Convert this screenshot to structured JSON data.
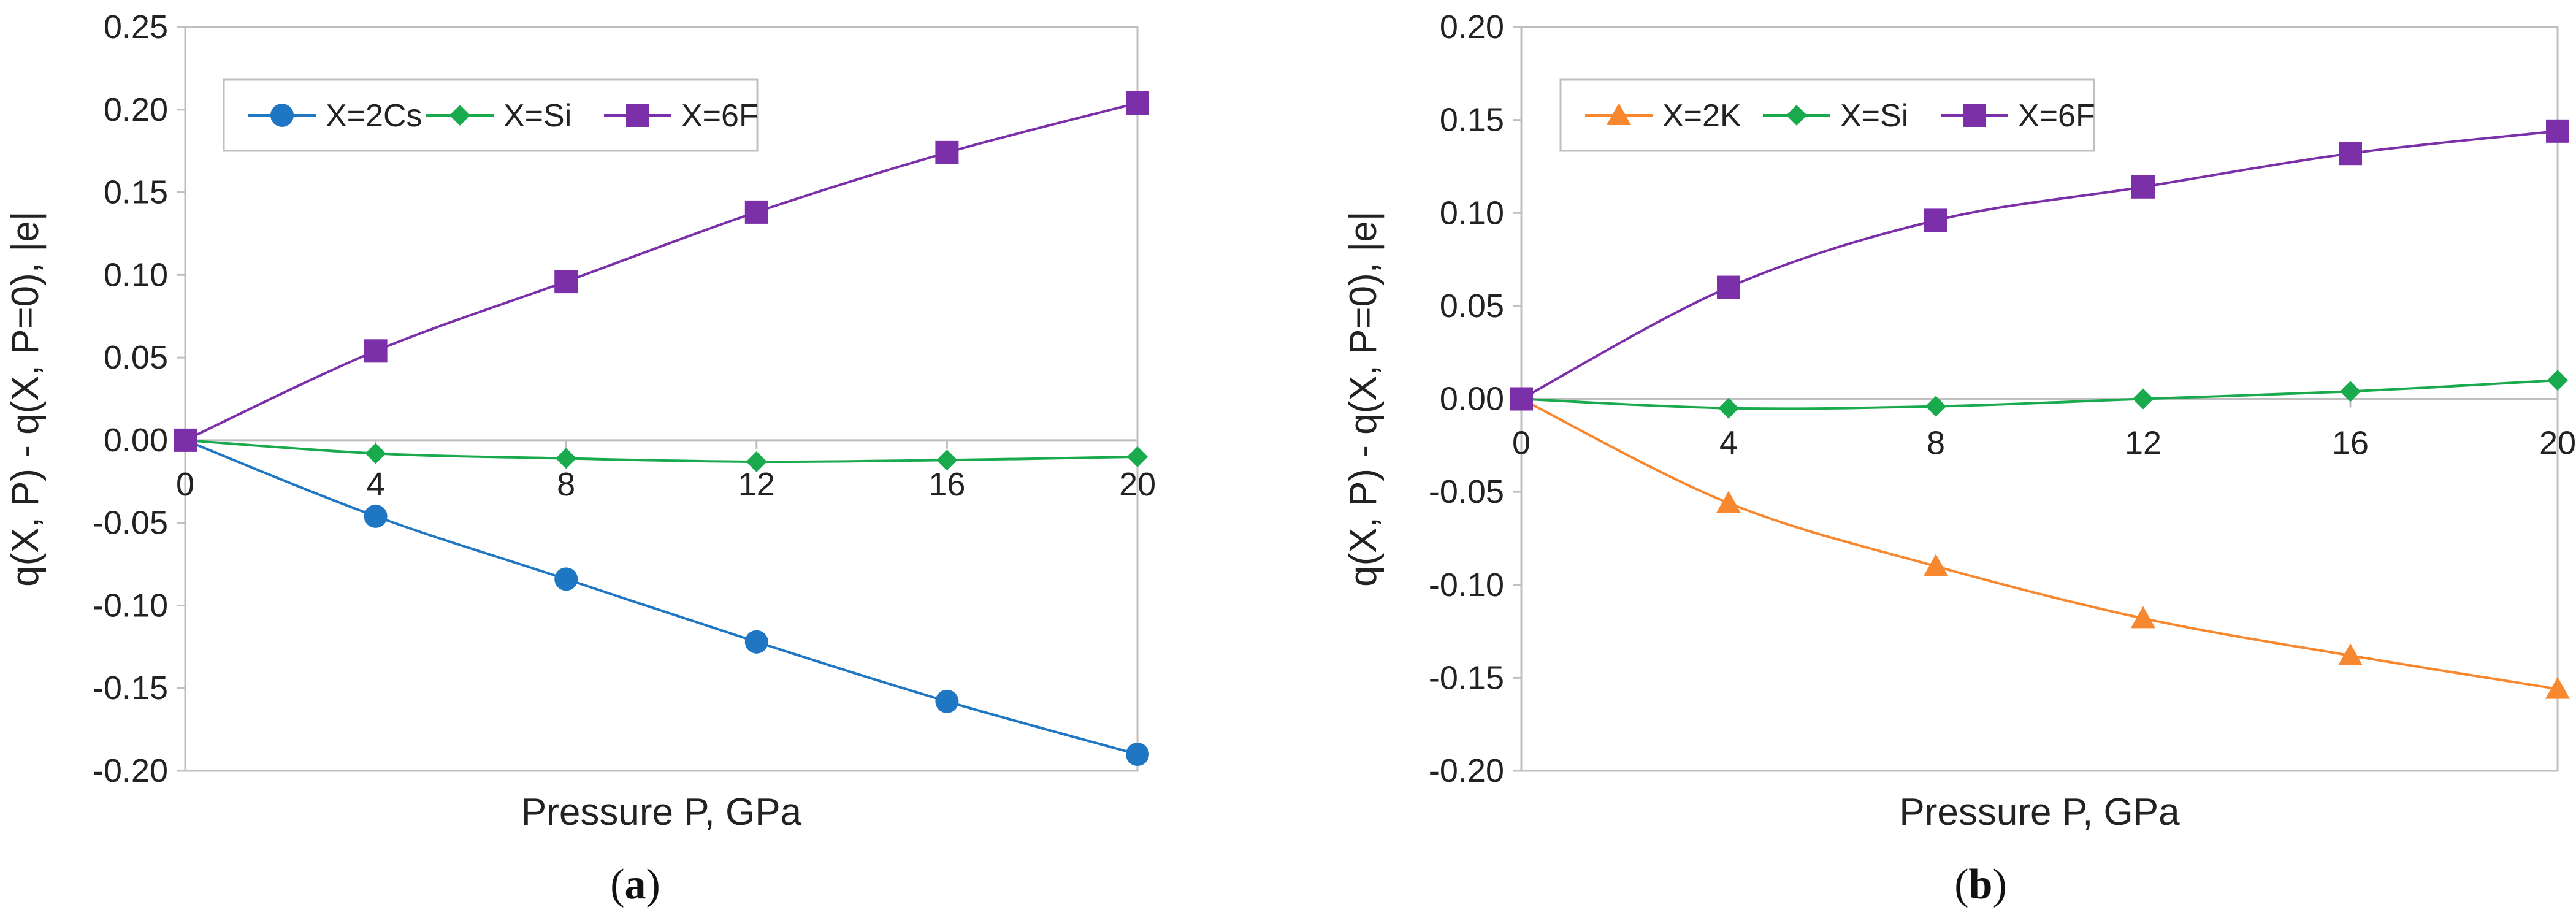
{
  "chart_data": [
    {
      "type": "line",
      "panel_label": {
        "open": "(",
        "letter": "a",
        "close": ")"
      },
      "xlabel": "Pressure P, GPa",
      "ylabel": "q(X, P) - q(X, P=0), |e|",
      "x": [
        0,
        4,
        8,
        12,
        16,
        20
      ],
      "x_tick_labels": [
        "0",
        "4",
        "8",
        "12",
        "16",
        "20"
      ],
      "ylim": [
        -0.2,
        0.25
      ],
      "y_ticks": [
        0.25,
        0.2,
        0.15,
        0.1,
        0.05,
        0.0,
        -0.05,
        -0.1,
        -0.15,
        -0.2
      ],
      "y_tick_labels": [
        "0.25",
        "0.20",
        "0.15",
        "0.10",
        "0.05",
        "0.00",
        "-0.05",
        "-0.10",
        "-0.15",
        "-0.20"
      ],
      "legend_position": "top-left",
      "series": [
        {
          "name": "X=2Cs",
          "marker": "circle",
          "color": "#1f77c4",
          "values": [
            0,
            -0.046,
            -0.084,
            -0.122,
            -0.158,
            -0.19
          ]
        },
        {
          "name": "X=Si",
          "marker": "diamond",
          "color": "#1aaa4e",
          "values": [
            0,
            -0.008,
            -0.011,
            -0.013,
            -0.012,
            -0.01
          ]
        },
        {
          "name": "X=6F",
          "marker": "square",
          "color": "#7b2fa8",
          "values": [
            0,
            0.054,
            0.096,
            0.138,
            0.174,
            0.204
          ]
        }
      ]
    },
    {
      "type": "line",
      "panel_label": {
        "open": "(",
        "letter": "b",
        "close": ")"
      },
      "xlabel": "Pressure P, GPa",
      "ylabel": "q(X, P) - q(X, P=0), |e|",
      "x": [
        0,
        4,
        8,
        12,
        16,
        20
      ],
      "x_tick_labels": [
        "0",
        "4",
        "8",
        "12",
        "16",
        "20"
      ],
      "ylim": [
        -0.2,
        0.2
      ],
      "y_ticks": [
        0.2,
        0.15,
        0.1,
        0.05,
        0.0,
        -0.05,
        -0.1,
        -0.15,
        -0.2
      ],
      "y_tick_labels": [
        "0.20",
        "0.15",
        "0.10",
        "0.05",
        "0.00",
        "-0.05",
        "-0.10",
        "-0.15",
        "-0.20"
      ],
      "legend_position": "top-left",
      "series": [
        {
          "name": "X=2K",
          "marker": "triangle",
          "color": "#f7882f",
          "values": [
            0,
            -0.056,
            -0.09,
            -0.118,
            -0.138,
            -0.156
          ]
        },
        {
          "name": "X=Si",
          "marker": "diamond",
          "color": "#1aaa4e",
          "values": [
            0,
            -0.005,
            -0.004,
            0.0,
            0.004,
            0.01
          ]
        },
        {
          "name": "X=6F",
          "marker": "square",
          "color": "#7b2fa8",
          "values": [
            0,
            0.06,
            0.096,
            0.114,
            0.132,
            0.144
          ]
        }
      ]
    }
  ]
}
